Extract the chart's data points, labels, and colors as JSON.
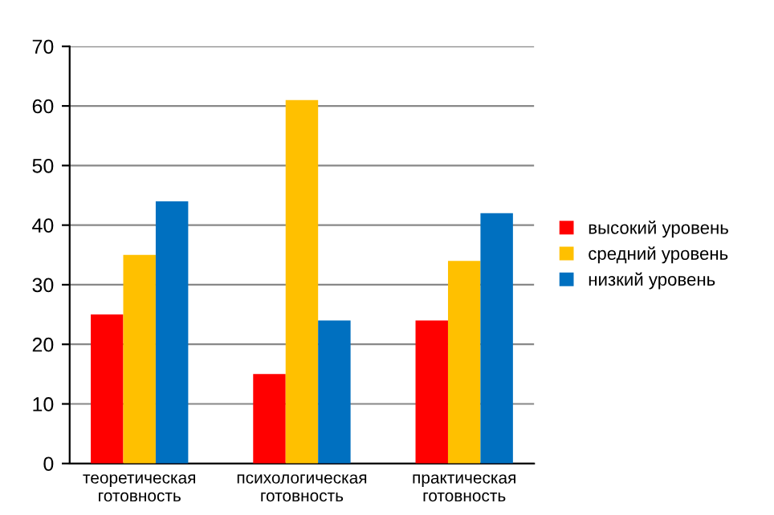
{
  "chart_data": {
    "type": "bar",
    "categories": [
      "теоретическая\nготовность",
      "психологическая\nготовность",
      "практическая\nготовность"
    ],
    "series": [
      {
        "name": "высокий уровень",
        "color": "#ff0000",
        "values": [
          25,
          15,
          24
        ]
      },
      {
        "name": "средний уровень",
        "color": "#ffc000",
        "values": [
          35,
          61,
          34
        ]
      },
      {
        "name": "низкий уровень",
        "color": "#0070c0",
        "values": [
          44,
          24,
          42
        ]
      }
    ],
    "ylim": [
      0,
      70
    ],
    "yticks": [
      0,
      10,
      20,
      30,
      40,
      50,
      60,
      70
    ],
    "grid": "y",
    "legend": "right"
  }
}
